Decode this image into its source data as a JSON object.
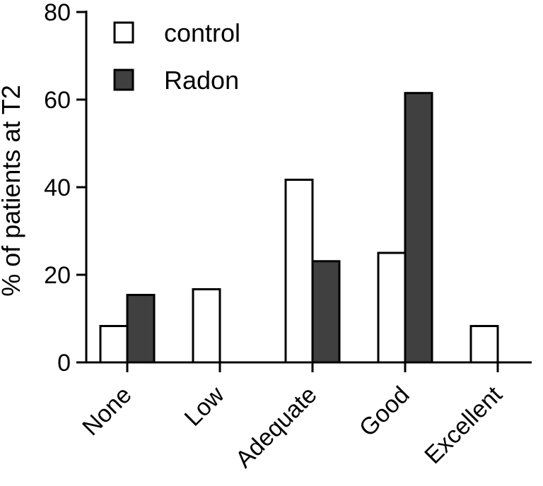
{
  "chart_data": {
    "type": "bar",
    "categories": [
      "None",
      "Low",
      "Adequate",
      "Good",
      "Excellent"
    ],
    "series": [
      {
        "name": "control",
        "values": [
          8.3,
          16.7,
          41.7,
          25.0,
          8.3
        ],
        "color": "#ffffff"
      },
      {
        "name": "Radon",
        "values": [
          15.4,
          0,
          23.1,
          61.5,
          0
        ],
        "color": "#404040"
      }
    ],
    "title": "",
    "xlabel": "",
    "ylabel": "% of patients at T2",
    "ylim": [
      0,
      80
    ],
    "yticks": [
      0,
      20,
      40,
      60,
      80
    ],
    "grid": false,
    "legend": "top-left"
  }
}
